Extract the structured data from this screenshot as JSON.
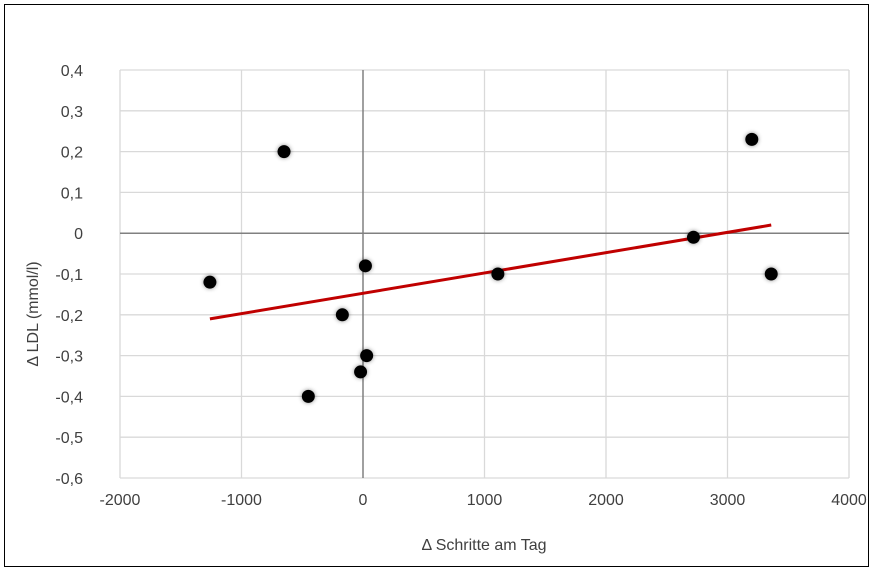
{
  "chart_data": {
    "type": "scatter",
    "title": "",
    "xlabel": "Δ Schritte am Tag",
    "ylabel": "Δ LDL (mmol/l)",
    "xlim": [
      -2000,
      4000
    ],
    "ylim": [
      -0.6,
      0.4
    ],
    "x_ticks": [
      -2000,
      -1000,
      0,
      1000,
      2000,
      3000,
      4000
    ],
    "x_tick_labels": [
      "-2000",
      "-1000",
      "0",
      "1000",
      "2000",
      "3000",
      "4000"
    ],
    "y_ticks": [
      0.4,
      0.3,
      0.2,
      0.1,
      0,
      -0.1,
      -0.2,
      -0.3,
      -0.4,
      -0.5,
      -0.6
    ],
    "y_tick_labels": [
      "0,4",
      "0,3",
      "0,2",
      "0,1",
      "0",
      "-0,1",
      "-0,2",
      "-0,3",
      "-0,4",
      "-0,5",
      "-0,6"
    ],
    "grid": true,
    "legend": "none",
    "points": [
      {
        "x": -1260,
        "y": -0.12
      },
      {
        "x": -650,
        "y": 0.2
      },
      {
        "x": -450,
        "y": -0.4
      },
      {
        "x": -170,
        "y": -0.2
      },
      {
        "x": -20,
        "y": -0.34
      },
      {
        "x": 20,
        "y": -0.08
      },
      {
        "x": 30,
        "y": -0.3
      },
      {
        "x": 1110,
        "y": -0.1
      },
      {
        "x": 2720,
        "y": -0.01
      },
      {
        "x": 3200,
        "y": 0.23
      },
      {
        "x": 3360,
        "y": -0.1
      }
    ],
    "trendline": {
      "x": [
        -1260,
        3360
      ],
      "y": [
        -0.21,
        0.02
      ]
    },
    "colors": {
      "points": "#000000",
      "trendline": "#c00000",
      "grid": "#d9d9d9",
      "zero_axes": "#808080"
    }
  }
}
